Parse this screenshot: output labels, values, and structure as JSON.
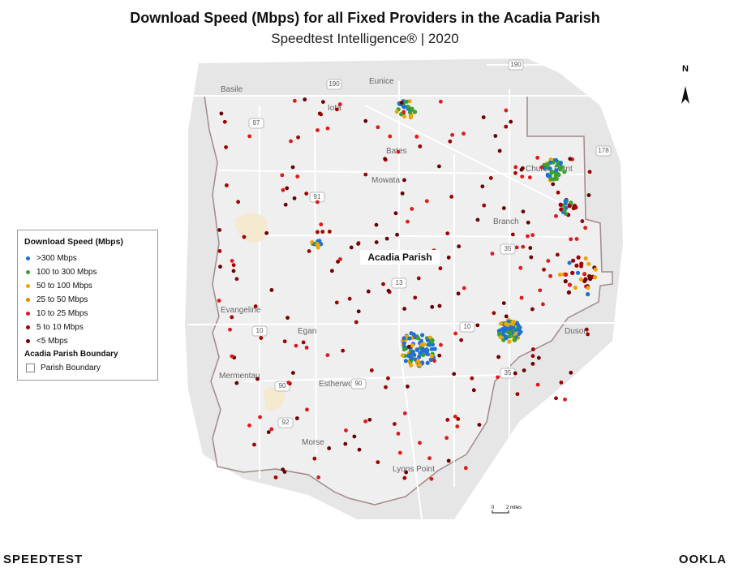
{
  "header": {
    "title": "Download Speed (Mbps) for all Fixed Providers in the Acadia Parish",
    "subtitle": "Speedtest Intelligence® | 2020"
  },
  "legend": {
    "title": "Download Speed (Mbps)",
    "items": [
      {
        "label": ">300 Mbps",
        "color": "#1f6fd6"
      },
      {
        "label": "100 to 300 Mbps",
        "color": "#3aa12a"
      },
      {
        "label": "50 to 100 Mbps",
        "color": "#f0a500"
      },
      {
        "label": "25 to 50 Mbps",
        "color": "#e58a00"
      },
      {
        "label": "10 to 25 Mbps",
        "color": "#e01818"
      },
      {
        "label": "5 to 10 Mbps",
        "color": "#a00000"
      },
      {
        "label": "<5 Mbps",
        "color": "#6b0000"
      }
    ],
    "boundary_title": "Acadia Parish Boundary",
    "boundary_label": "Parish Boundary"
  },
  "map": {
    "parish_label": "Acadia Parish",
    "places": [
      "Basile",
      "Eunice",
      "Iota",
      "Bates",
      "Mowata",
      "Church Point",
      "Branch",
      "Evangeline",
      "Egan",
      "Duson",
      "Mermentau",
      "Estherwood",
      "Morse",
      "Lyons Point"
    ],
    "highways": [
      "190",
      "190",
      "97",
      "91",
      "35",
      "35",
      "13",
      "10",
      "10",
      "90",
      "90",
      "92",
      "178"
    ],
    "north": "N",
    "scale_start": "0",
    "scale_end": "2 miles"
  },
  "footer": {
    "left": "SPEEDTEST",
    "right": "OOKLA"
  }
}
